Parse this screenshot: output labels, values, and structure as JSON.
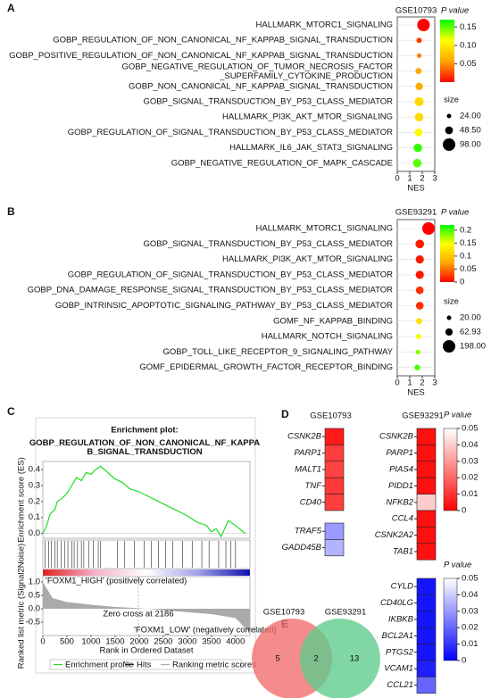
{
  "chart_data": [
    {
      "type": "dot",
      "panel": "A",
      "title": "GSE10793",
      "categories": [
        "HALLMARK_MTORC1_SIGNALING",
        "GOBP_REGULATION_OF_NON_CANONICAL_NF_KAPPAB_SIGNAL_TRANSDUCTION",
        "GOBP_POSITIVE_REGULATION_OF_NON_CANONICAL_NF_KAPPAB_SIGNAL_TRANSDUCTION",
        "GOBP_NEGATIVE_REGULATION_OF_TUMOR_NECROSIS_FACTOR\n_SUPERFAMILY_CYTOKINE_PRODUCTION",
        "GOBP_NON_CANONICAL_NF_KAPPAB_SIGNAL_TRANSDUCTION",
        "GOBP_SIGNAL_TRANSDUCTION_BY_P53_CLASS_MEDIATOR",
        "HALLMARK_PI3K_AKT_MTOR_SIGNALING",
        "GOBP_REGULATION_OF_SIGNAL_TRANSDUCTION_BY_P53_CLASS_MEDIATOR",
        "HALLMARK_IL6_JAK_STAT3_SIGNALING",
        "GOBP_NEGATIVE_REGULATION_OF_MAPK_CASCADE"
      ],
      "values": [
        2.1,
        1.75,
        1.75,
        1.7,
        1.75,
        1.75,
        1.75,
        1.7,
        1.65,
        1.6
      ],
      "pvalues": [
        0.0,
        0.02,
        0.04,
        0.06,
        0.06,
        0.09,
        0.09,
        0.11,
        0.16,
        0.15
      ],
      "sizes": [
        98,
        30,
        24,
        35,
        45,
        60,
        55,
        50,
        55,
        55
      ],
      "xlabel": "NES",
      "xlim": [
        0,
        3
      ],
      "xticks": [
        0,
        1,
        2,
        3
      ],
      "color_title": "P value",
      "clim": [
        0,
        0.17
      ],
      "cticks": [
        0.05,
        {
          "value": 0.1,
          "label": "0.10"
        },
        0.15
      ],
      "colors": [
        "#ff0000",
        "#ffa500",
        "#ffff00",
        "#00ff00"
      ],
      "size_title": "size",
      "size_ticks": [
        {
          "value": 24,
          "label": "24.00"
        },
        {
          "value": 48.5,
          "label": "48.50"
        },
        {
          "value": 98,
          "label": "98.00"
        }
      ]
    },
    {
      "type": "dot",
      "panel": "B",
      "title": "GSE93291",
      "categories": [
        "HALLMARK_MTORC1_SIGNALING",
        "GOBP_SIGNAL_TRANSDUCTION_BY_P53_CLASS_MEDIATOR",
        "HALLMARK_PI3K_AKT_MTOR_SIGNALING",
        "GOBP_REGULATION_OF_SIGNAL_TRANSDUCTION_BY_P53_CLASS_MEDIATOR",
        "GOBP_DNA_DAMAGE_RESPONSE_SIGNAL_TRANSDUCTION_BY_P53_CLASS_MEDIATOR",
        "GOBP_INTRINSIC_APOPTOTIC_SIGNALING_PATHWAY_BY_P53_CLASS_MEDIATOR",
        "GOMF_NF_KAPPAB_BINDING",
        "HALLMARK_NOTCH_SIGNALING",
        "GOBP_TOLL_LIKE_RECEPTOR_9_SIGNALING_PATHWAY",
        "GOMF_EPIDERMAL_GROWTH_FACTOR_RECEPTOR_BINDING"
      ],
      "values": [
        2.5,
        1.8,
        1.8,
        1.8,
        1.8,
        1.8,
        1.75,
        1.7,
        1.65,
        1.6
      ],
      "pvalues": [
        0.0,
        0.01,
        0.01,
        0.01,
        0.02,
        0.02,
        0.12,
        0.15,
        0.18,
        0.2
      ],
      "sizes": [
        198,
        90,
        80,
        80,
        70,
        70,
        40,
        30,
        25,
        35
      ],
      "xlabel": "NES",
      "xlim": [
        0,
        3
      ],
      "xticks": [
        0,
        1,
        2,
        3
      ],
      "color_title": "P value",
      "clim": [
        0,
        0.22
      ],
      "cticks": [
        0,
        0.05,
        0.1,
        0.15,
        0.2
      ],
      "colors": [
        "#ff0000",
        "#ffa500",
        "#ffff00",
        "#00ff00"
      ],
      "size_title": "size",
      "size_ticks": [
        {
          "value": 20,
          "label": "20.00"
        },
        {
          "value": 62.93,
          "label": "62.93"
        },
        {
          "value": 198,
          "label": "198.00"
        }
      ]
    },
    {
      "type": "gsea",
      "panel": "C",
      "title": "Enrichment plot:",
      "subtitle": "GOBP_REGULATION_OF_NON_CANONICAL_NF_KAPPA\nB_SIGNAL_TRANSDUCTION",
      "ylabel": "Enrichment score (ES)",
      "ylim": [
        -0.03,
        0.45
      ],
      "yticks": [
        {
          "value": 0,
          "label": "0.0"
        },
        0.1,
        0.2,
        0.3,
        0.4
      ],
      "x": [
        0,
        80,
        150,
        250,
        300,
        400,
        500,
        600,
        700,
        800,
        900,
        1000,
        1100,
        1200,
        1350,
        1500,
        1650,
        1800,
        2000,
        2200,
        2400,
        2600,
        2800,
        3000,
        3200,
        3400,
        3500,
        3600,
        3700,
        3850,
        4000,
        4200
      ],
      "es": [
        0,
        0.05,
        0.12,
        0.15,
        0.2,
        0.22,
        0.25,
        0.3,
        0.35,
        0.33,
        0.38,
        0.37,
        0.4,
        0.42,
        0.38,
        0.34,
        0.32,
        0.28,
        0.26,
        0.23,
        0.2,
        0.17,
        0.14,
        0.11,
        0.07,
        0.05,
        0.01,
        0.03,
        -0.02,
        0.08,
        0.05,
        0
      ],
      "hits": [
        50,
        120,
        180,
        250,
        300,
        380,
        450,
        520,
        600,
        650,
        720,
        800,
        850,
        950,
        1050,
        1150,
        1200,
        1550,
        1700,
        1900,
        2100,
        2250,
        2400,
        2550,
        2700,
        2900,
        3100,
        3300,
        3450,
        3650,
        3800,
        3900,
        4000
      ],
      "metric_ylabel": "Ranked list metric (Signal2Noise)",
      "metric_ylim": [
        -1,
        1.2
      ],
      "metric_yticks": [
        {
          "value": 1,
          "label": "1.0"
        },
        0.5,
        {
          "value": 0,
          "label": "0.0"
        },
        -0.5
      ],
      "metric_x": [
        0,
        200,
        500,
        1000,
        1500,
        2186,
        2800,
        3500,
        4000,
        4300
      ],
      "metric": [
        1.0,
        0.4,
        0.25,
        0.15,
        0.07,
        0,
        -0.1,
        -0.2,
        -0.35,
        -0.9
      ],
      "xlabel": "Rank in Ordered Dataset",
      "xlim": [
        0,
        4300
      ],
      "xticks": [
        0,
        500,
        1000,
        1500,
        2000,
        2500,
        3000,
        3500,
        4000
      ],
      "annotations": {
        "high": "'FOXM1_HIGH' (positively correlated)",
        "zero": "Zero cross at 2186",
        "low": "'FOXM1_LOW' (negatively correlated)"
      },
      "legend": [
        "Enrichment profile",
        "Hits",
        "Ranking metric scores"
      ],
      "colors": {
        "es": "#22dd22",
        "hits": "#222222",
        "metric": "#aaaaaa"
      }
    },
    {
      "type": "heatmap",
      "panel": "D",
      "columns": [
        {
          "title": "GSE10793",
          "up_genes": [
            "CSNK2B",
            "PARP1",
            "MALT1",
            "TNF",
            "CD40"
          ],
          "up_values": [
            0.005,
            0.012,
            0.013,
            0.011,
            0.012
          ],
          "down_genes": [
            "TRAF5",
            "GADD45B"
          ],
          "down_values": [
            0.03,
            0.035
          ]
        },
        {
          "title": "GSE93291",
          "up_genes": [
            "CSNK2B",
            "PARP1",
            "PIAS4",
            "PIDD1",
            "NFKB2",
            "CCL4",
            "CSNK2A2",
            "TAB1"
          ],
          "up_values": [
            0.003,
            0.003,
            0.003,
            0.003,
            0.04,
            0.003,
            0.003,
            0.003
          ],
          "down_genes": [
            "CYLD",
            "CD40LG",
            "IKBKB",
            "BCL2A1",
            "PTGS2",
            "VCAM1",
            "CCL21"
          ],
          "down_values": [
            0.004,
            0.004,
            0.004,
            0.004,
            0.004,
            0.006,
            0.02
          ]
        }
      ],
      "color_title": "P value",
      "clim": [
        0,
        0.05
      ],
      "cticks": [
        0,
        0.01,
        0.02,
        0.03,
        0.04,
        0.05
      ],
      "up_colors": [
        "#ff0000",
        "#ffffff"
      ],
      "down_colors": [
        "#0000ff",
        "#ffffff"
      ]
    },
    {
      "type": "venn",
      "panel": "E",
      "sets": [
        {
          "name": "GSE10793",
          "color": "#f26b6b"
        },
        {
          "name": "GSE93291",
          "color": "#5ccc8c"
        }
      ],
      "counts": [
        5,
        2,
        13
      ]
    }
  ]
}
